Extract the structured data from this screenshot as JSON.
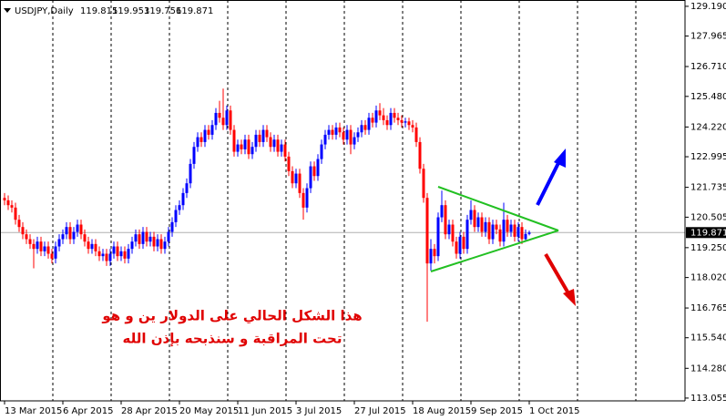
{
  "chart_data": {
    "type": "candlestick",
    "title": "USDJPY,Daily",
    "annotations": [
      "هذا الشكل الحالي على الدولار ين و هو",
      "تحت المراقبة و سنذبحه بإذن الله"
    ],
    "up_color": "#0000ff",
    "down_color": "#ff0000",
    "ylim": [
      112.94,
      129.45
    ],
    "yticks": [
      {
        "value": 129.19,
        "label": "129.190"
      },
      127.965,
      {
        "value": 126.71,
        "label": "126.710"
      },
      {
        "value": 125.48,
        "label": "125.480"
      },
      {
        "value": 124.22,
        "label": "124.220"
      },
      122.995,
      121.735,
      120.505,
      {
        "value": 119.25,
        "label": "119.250"
      },
      {
        "value": 118.02,
        "label": "118.020"
      },
      116.765,
      {
        "value": 115.54,
        "label": "115.540"
      },
      {
        "value": 114.28,
        "label": "114.280"
      },
      113.055
    ],
    "categories": [
      "13 Mar 2015",
      null,
      null,
      null,
      null,
      null,
      null,
      null,
      null,
      null,
      null,
      null,
      null,
      null,
      null,
      null,
      "6 Apr 2015",
      null,
      null,
      null,
      null,
      null,
      null,
      null,
      null,
      null,
      null,
      null,
      null,
      null,
      null,
      null,
      "28 Apr 2015",
      null,
      null,
      null,
      null,
      null,
      null,
      null,
      null,
      null,
      null,
      null,
      null,
      null,
      null,
      null,
      "20 May 2015",
      null,
      null,
      null,
      null,
      null,
      null,
      null,
      null,
      null,
      null,
      null,
      null,
      null,
      null,
      null,
      "11 Jun 2015",
      null,
      null,
      null,
      null,
      null,
      null,
      null,
      null,
      null,
      null,
      null,
      null,
      null,
      null,
      null,
      "3 Jul 2015",
      null,
      null,
      null,
      null,
      null,
      null,
      null,
      null,
      null,
      null,
      null,
      null,
      null,
      null,
      null,
      "27 Jul 2015",
      null,
      null,
      null,
      null,
      null,
      null,
      null,
      null,
      null,
      null,
      null,
      null,
      null,
      null,
      null,
      "18 Aug 2015",
      null,
      null,
      null,
      null,
      null,
      null,
      null,
      null,
      null,
      null,
      null,
      null,
      null,
      null,
      null,
      "9 Sep 2015",
      null,
      null,
      null,
      null,
      null,
      null,
      null,
      null,
      null,
      null,
      null,
      null,
      null,
      null,
      null,
      "1 Oct 2015"
    ],
    "ohlc": [
      [
        121.3,
        121.5,
        121.0,
        121.2
      ],
      [
        121.2,
        121.4,
        120.8,
        121.0
      ],
      [
        121.0,
        121.2,
        120.7,
        120.9
      ],
      [
        120.9,
        121.1,
        120.2,
        120.4
      ],
      [
        120.4,
        120.6,
        119.9,
        120.1
      ],
      [
        120.1,
        120.3,
        119.6,
        119.8
      ],
      [
        119.8,
        120.0,
        119.4,
        119.6
      ],
      [
        119.6,
        119.8,
        119.2,
        119.4
      ],
      [
        119.4,
        119.6,
        118.4,
        119.2
      ],
      [
        119.2,
        119.7,
        119.0,
        119.5
      ],
      [
        119.5,
        119.7,
        118.9,
        119.1
      ],
      [
        119.1,
        119.5,
        118.9,
        119.3
      ],
      [
        119.3,
        119.5,
        118.8,
        119.0
      ],
      [
        119.0,
        119.2,
        118.6,
        118.8
      ],
      [
        118.8,
        119.5,
        118.6,
        119.3
      ],
      [
        119.3,
        119.8,
        119.1,
        119.6
      ],
      [
        119.6,
        120.0,
        119.4,
        119.8
      ],
      [
        119.8,
        120.3,
        119.6,
        120.1
      ],
      [
        120.1,
        120.3,
        119.4,
        119.6
      ],
      [
        119.6,
        120.1,
        119.4,
        119.9
      ],
      [
        119.9,
        120.4,
        119.7,
        120.2
      ],
      [
        120.2,
        120.4,
        119.6,
        119.8
      ],
      [
        119.8,
        120.0,
        119.3,
        119.5
      ],
      [
        119.5,
        119.7,
        119.0,
        119.2
      ],
      [
        119.2,
        119.6,
        119.0,
        119.4
      ],
      [
        119.4,
        119.6,
        118.9,
        119.1
      ],
      [
        119.1,
        119.3,
        118.7,
        118.9
      ],
      [
        118.9,
        119.2,
        118.7,
        119.0
      ],
      [
        119.0,
        119.2,
        118.5,
        118.7
      ],
      [
        118.7,
        119.2,
        118.5,
        119.0
      ],
      [
        119.0,
        119.5,
        118.8,
        119.3
      ],
      [
        119.3,
        119.5,
        118.7,
        118.9
      ],
      [
        118.9,
        119.3,
        118.7,
        119.1
      ],
      [
        119.1,
        119.3,
        118.6,
        118.8
      ],
      [
        118.8,
        119.4,
        118.6,
        119.2
      ],
      [
        119.2,
        119.7,
        119.0,
        119.5
      ],
      [
        119.5,
        120.0,
        119.3,
        119.8
      ],
      [
        119.8,
        120.0,
        119.2,
        119.4
      ],
      [
        119.4,
        120.1,
        119.2,
        119.9
      ],
      [
        119.9,
        120.1,
        119.3,
        119.5
      ],
      [
        119.5,
        119.9,
        119.3,
        119.7
      ],
      [
        119.7,
        119.9,
        119.1,
        119.3
      ],
      [
        119.3,
        119.8,
        119.1,
        119.6
      ],
      [
        119.6,
        119.8,
        119.0,
        119.2
      ],
      [
        119.2,
        119.7,
        119.0,
        119.5
      ],
      [
        119.5,
        120.1,
        119.3,
        119.9
      ],
      [
        119.9,
        120.5,
        119.7,
        120.3
      ],
      [
        120.3,
        121.0,
        120.1,
        120.8
      ],
      [
        120.8,
        121.2,
        120.6,
        121.0
      ],
      [
        121.0,
        121.7,
        120.8,
        121.5
      ],
      [
        121.5,
        122.1,
        121.3,
        121.9
      ],
      [
        121.9,
        122.9,
        121.7,
        122.7
      ],
      [
        122.7,
        123.6,
        122.5,
        123.4
      ],
      [
        123.4,
        124.0,
        123.2,
        123.8
      ],
      [
        123.8,
        124.0,
        123.4,
        123.6
      ],
      [
        123.6,
        124.3,
        123.4,
        124.1
      ],
      [
        124.1,
        124.3,
        123.7,
        123.9
      ],
      [
        123.9,
        124.5,
        123.7,
        124.3
      ],
      [
        124.3,
        125.0,
        124.1,
        124.8
      ],
      [
        124.8,
        125.3,
        124.4,
        124.6
      ],
      [
        124.6,
        125.8,
        124.1,
        124.3
      ],
      [
        124.3,
        125.1,
        124.1,
        124.9
      ],
      [
        124.9,
        125.1,
        123.9,
        124.1
      ],
      [
        124.1,
        124.3,
        123.0,
        123.2
      ],
      [
        123.2,
        123.7,
        123.0,
        123.5
      ],
      [
        123.5,
        123.7,
        123.1,
        123.3
      ],
      [
        123.3,
        123.9,
        123.1,
        123.7
      ],
      [
        123.7,
        123.9,
        122.9,
        123.1
      ],
      [
        123.1,
        123.6,
        122.9,
        123.4
      ],
      [
        123.4,
        124.1,
        123.2,
        123.9
      ],
      [
        123.9,
        124.1,
        123.4,
        123.6
      ],
      [
        123.6,
        124.3,
        123.4,
        124.1
      ],
      [
        124.1,
        124.3,
        123.6,
        123.8
      ],
      [
        123.8,
        124.0,
        123.2,
        123.4
      ],
      [
        123.4,
        123.9,
        123.2,
        123.7
      ],
      [
        123.7,
        123.9,
        123.0,
        123.2
      ],
      [
        123.2,
        123.7,
        123.0,
        123.5
      ],
      [
        123.5,
        123.7,
        122.8,
        123.0
      ],
      [
        123.0,
        123.2,
        122.2,
        122.4
      ],
      [
        122.4,
        122.6,
        121.7,
        121.9
      ],
      [
        121.9,
        122.5,
        121.7,
        122.3
      ],
      [
        122.3,
        122.5,
        121.3,
        121.5
      ],
      [
        121.5,
        121.7,
        120.4,
        120.9
      ],
      [
        120.9,
        121.9,
        120.7,
        121.7
      ],
      [
        121.7,
        122.8,
        121.5,
        122.6
      ],
      [
        122.6,
        122.8,
        122.0,
        122.2
      ],
      [
        122.2,
        123.1,
        122.0,
        122.9
      ],
      [
        122.9,
        123.7,
        122.7,
        123.5
      ],
      [
        123.5,
        124.1,
        123.3,
        123.9
      ],
      [
        123.9,
        124.3,
        123.7,
        124.1
      ],
      [
        124.1,
        124.3,
        123.7,
        123.9
      ],
      [
        123.9,
        124.4,
        123.7,
        124.2
      ],
      [
        124.2,
        124.4,
        123.8,
        124.0
      ],
      [
        124.0,
        124.2,
        123.5,
        123.7
      ],
      [
        123.7,
        124.3,
        123.5,
        124.1
      ],
      [
        124.1,
        124.3,
        123.1,
        123.5
      ],
      [
        123.5,
        124.0,
        123.3,
        123.8
      ],
      [
        123.8,
        124.2,
        123.6,
        124.0
      ],
      [
        124.0,
        124.5,
        123.8,
        124.3
      ],
      [
        124.3,
        124.5,
        123.9,
        124.1
      ],
      [
        124.1,
        124.8,
        123.9,
        124.6
      ],
      [
        124.6,
        124.8,
        124.2,
        124.4
      ],
      [
        124.4,
        125.1,
        124.2,
        124.9
      ],
      [
        124.9,
        125.2,
        124.5,
        124.7
      ],
      [
        124.7,
        125.0,
        124.3,
        124.5
      ],
      [
        124.5,
        124.7,
        124.1,
        124.3
      ],
      [
        124.3,
        125.0,
        124.1,
        124.8
      ],
      [
        124.8,
        125.0,
        124.4,
        124.6
      ],
      [
        124.6,
        124.8,
        124.3,
        124.5
      ],
      [
        124.5,
        124.7,
        124.2,
        124.4
      ],
      [
        124.4,
        124.6,
        124.2,
        124.45
      ],
      [
        124.45,
        124.6,
        124.1,
        124.3
      ],
      [
        124.3,
        124.5,
        124.0,
        124.2
      ],
      [
        124.2,
        124.4,
        123.4,
        123.6
      ],
      [
        123.6,
        123.8,
        122.3,
        122.5
      ],
      [
        122.5,
        122.7,
        121.1,
        121.3
      ],
      [
        121.3,
        121.5,
        116.2,
        118.6
      ],
      [
        118.6,
        119.6,
        118.3,
        119.2
      ],
      [
        119.2,
        119.4,
        118.6,
        118.9
      ],
      [
        118.9,
        120.7,
        118.7,
        120.5
      ],
      [
        120.5,
        121.6,
        120.3,
        121.0
      ],
      [
        121.0,
        121.2,
        119.6,
        119.8
      ],
      [
        119.8,
        120.4,
        119.6,
        120.2
      ],
      [
        120.2,
        120.4,
        119.3,
        119.5
      ],
      [
        119.5,
        119.7,
        118.8,
        119.0
      ],
      [
        119.0,
        119.9,
        118.8,
        119.7
      ],
      [
        119.7,
        119.9,
        119.0,
        119.2
      ],
      [
        119.2,
        120.6,
        119.0,
        120.4
      ],
      [
        120.4,
        121.2,
        120.2,
        120.8
      ],
      [
        120.8,
        121.0,
        119.9,
        120.1
      ],
      [
        120.1,
        120.7,
        119.9,
        120.5
      ],
      [
        120.5,
        120.7,
        119.7,
        119.9
      ],
      [
        119.9,
        120.5,
        119.7,
        120.3
      ],
      [
        120.3,
        120.5,
        119.4,
        119.6
      ],
      [
        119.6,
        120.4,
        119.4,
        120.2
      ],
      [
        120.2,
        120.4,
        119.8,
        120.0
      ],
      [
        120.0,
        120.2,
        119.3,
        119.5
      ],
      [
        119.5,
        121.1,
        119.3,
        120.4
      ],
      [
        120.4,
        120.6,
        119.7,
        119.9
      ],
      [
        119.9,
        120.4,
        119.7,
        120.2
      ],
      [
        120.2,
        120.4,
        119.5,
        119.7
      ],
      [
        119.7,
        120.3,
        119.5,
        120.1
      ],
      [
        120.1,
        120.3,
        119.4,
        119.6
      ],
      [
        119.6,
        120.0,
        119.5,
        119.815
      ],
      [
        119.815,
        119.953,
        119.756,
        119.871
      ]
    ]
  }
}
